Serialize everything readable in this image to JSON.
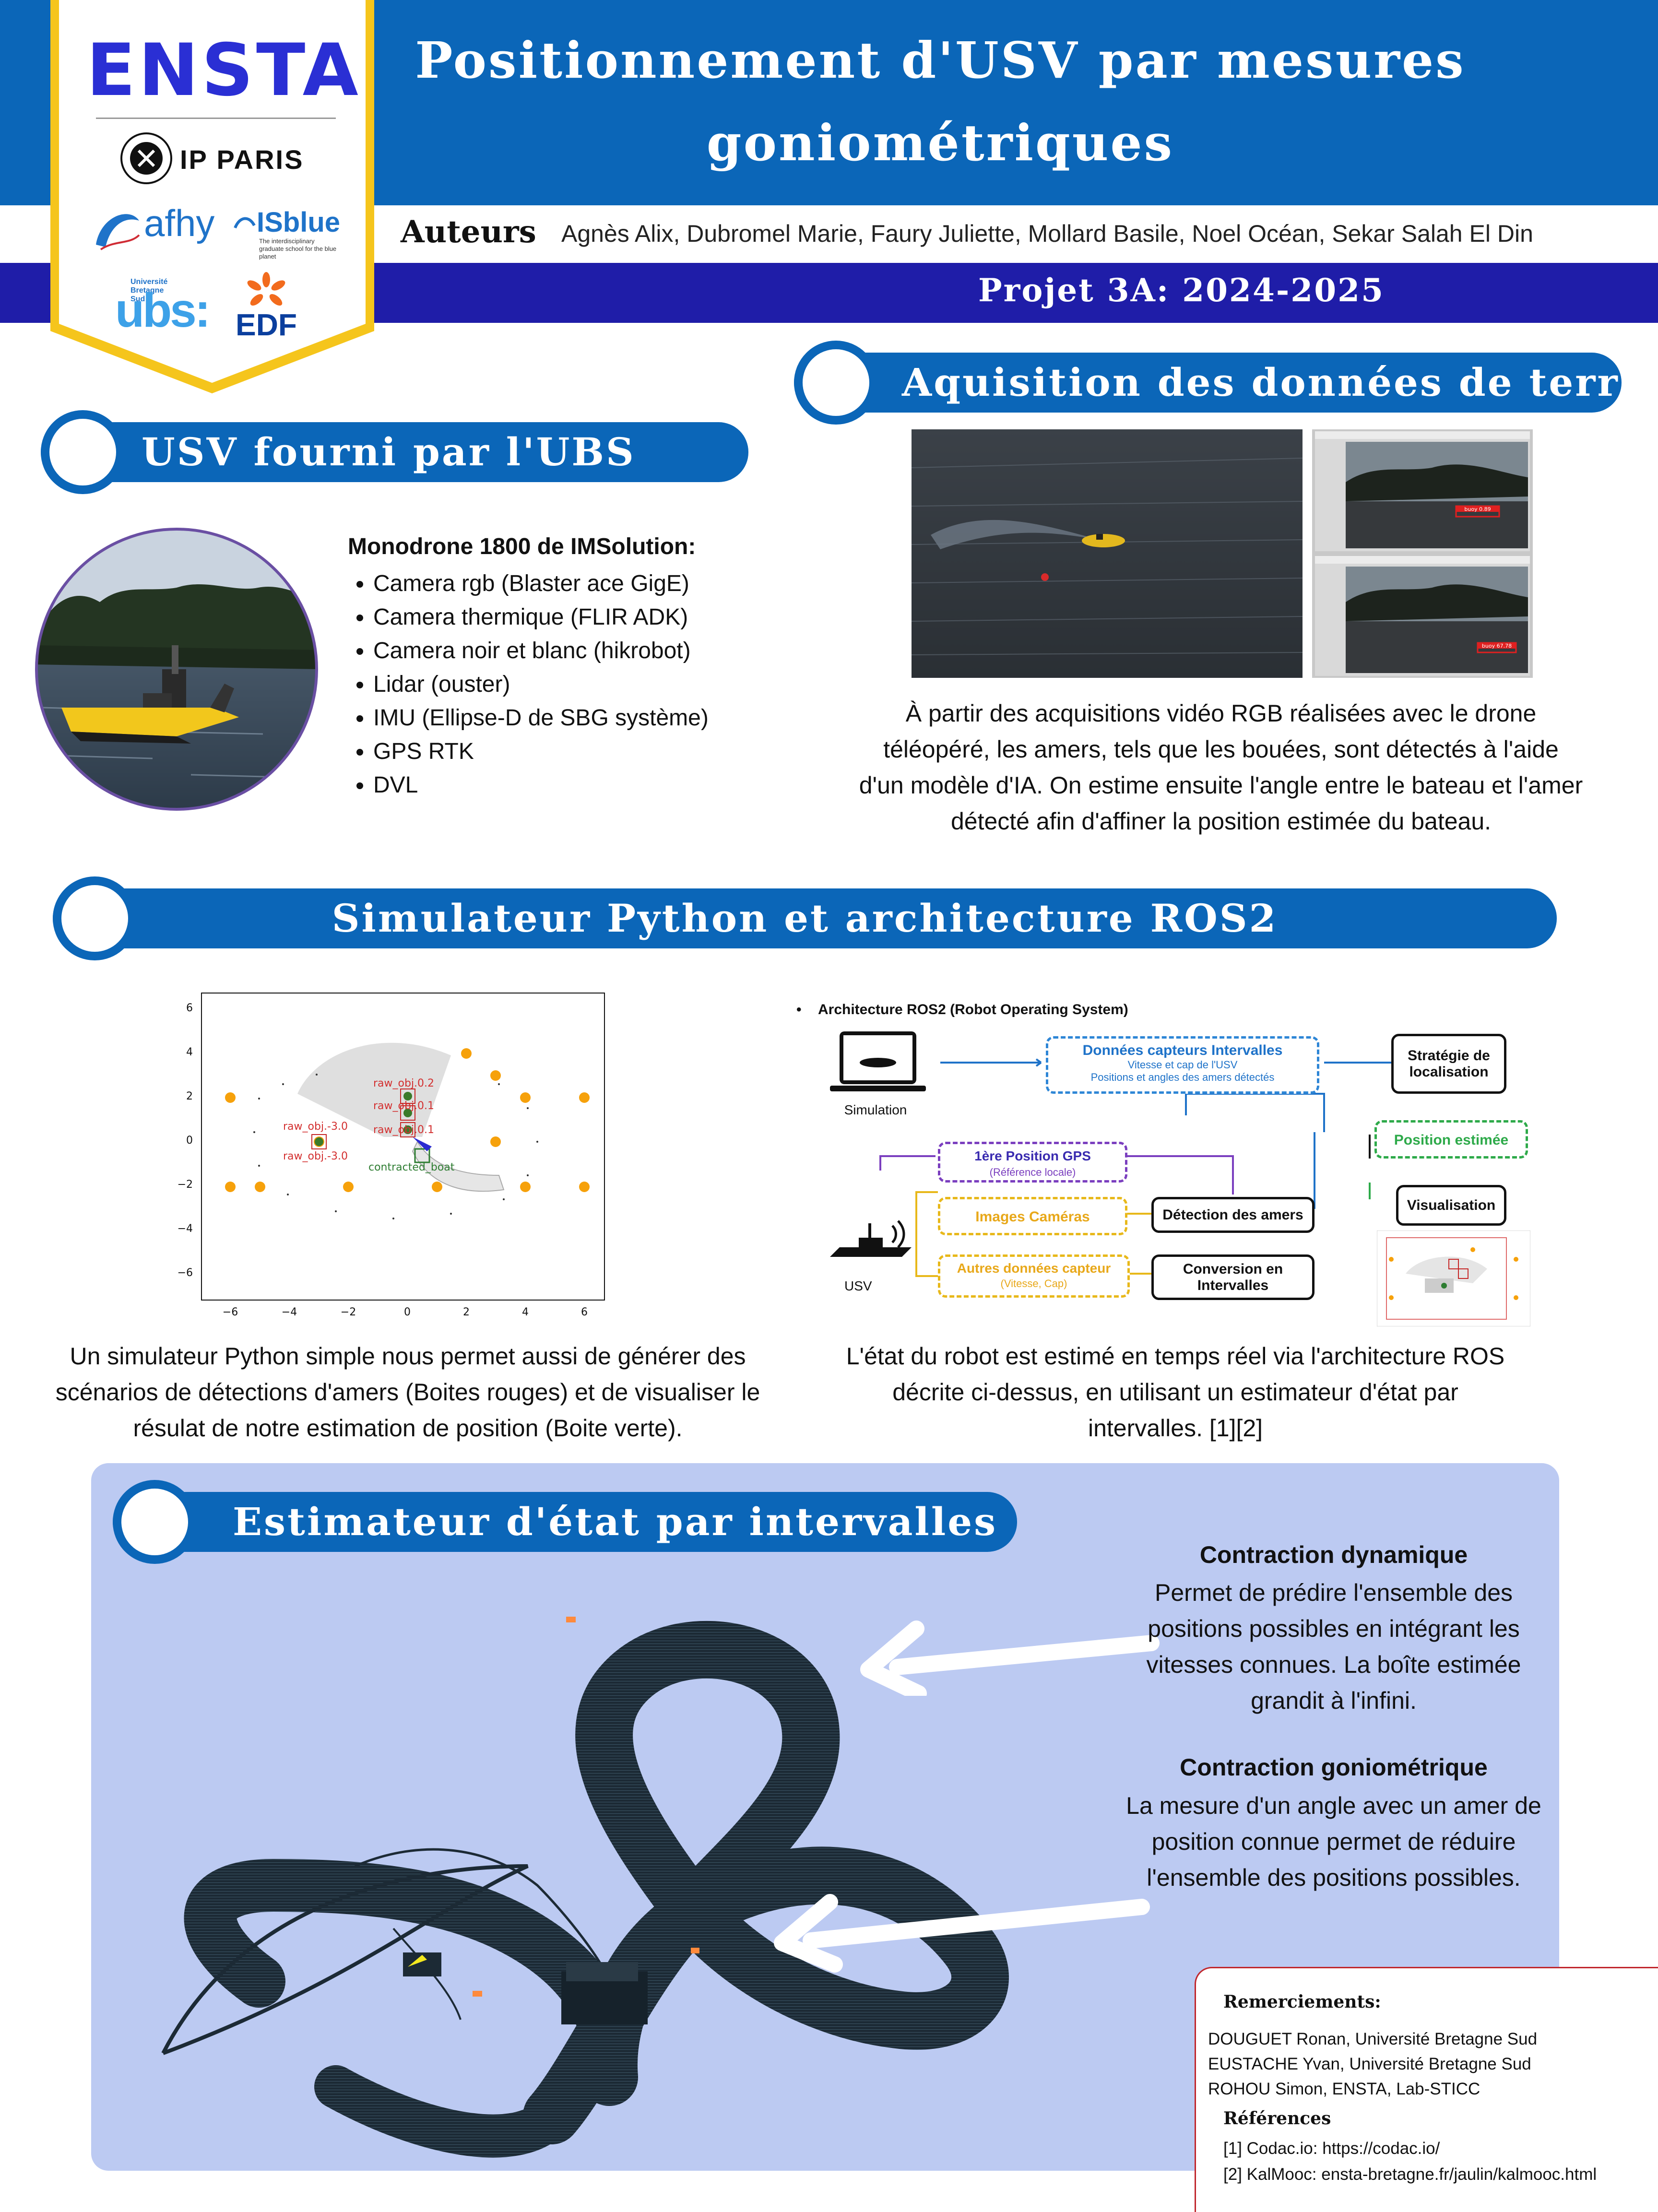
{
  "header": {
    "title": "Positionnement d'USV par mesures goniométriques",
    "authors_label": "Auteurs",
    "authors": "Agnès Alix, Dubromel Marie, Faury Juliette, Mollard Basile, Noel Océan, Sekar Salah El Din",
    "project": "Projet 3A: 2024-2025"
  },
  "logos": {
    "ensta": "ENSTA",
    "ip_paris": "IP PARIS",
    "afhy": "afhy",
    "isblue": "ISblue",
    "isblue_sub": "The interdisciplinary graduate school for the blue planet",
    "ubs": "ubs:",
    "ubs_sub": "Université Bretagne Sud",
    "edf": "EDF"
  },
  "sections": {
    "usv": {
      "title": "USV fourni par l'UBS",
      "model": "Monodrone 1800 de IMSolution:",
      "specs": [
        "Camera rgb (Blaster ace GigE)",
        "Camera thermique (FLIR ADK)",
        "Camera noir et blanc (hikrobot)",
        "Lidar (ouster)",
        "IMU (Ellipse-D de SBG système)",
        "GPS RTK",
        "DVL"
      ]
    },
    "acquisition": {
      "title": "Aquisition des données de terrain",
      "text": "À partir des acquisitions vidéo RGB réalisées avec le drone téléopéré, les amers, tels que les bouées, sont détectés à l'aide d'un modèle d'IA. On estime ensuite l'angle entre le bateau et l'amer détecté afin d'affiner la position estimée du bateau.",
      "detection_label_1": "buoy 0.89",
      "detection_label_2": "buoy 67.78"
    },
    "simulator": {
      "title": "Simulateur Python et architecture ROS2",
      "text_left": "Un simulateur Python simple nous permet aussi de générer des scénarios de détections d'amers (Boites rouges) et de visualiser le résulat de notre estimation de position (Boite verte).",
      "text_right": "L'état du robot est estimé en temps réel via l'architecture ROS décrite ci-dessus, en utilisant un estimateur d'état par intervalles. [1][2]"
    },
    "estimator": {
      "title": "Estimateur d'état par intervalles",
      "dyn_title": "Contraction dynamique",
      "dyn_text": "Permet de prédire l'ensemble des positions possibles en intégrant les vitesses connues. La boîte estimée grandit à l'infini.",
      "gon_title": "Contraction goniométrique",
      "gon_text": "La mesure d'un angle avec un amer de position connue permet de réduire l'ensemble des positions possibles."
    },
    "thanks": {
      "title": "Remerciements:",
      "people": [
        "DOUGUET Ronan, Université Bretagne Sud",
        "EUSTACHE Yvan, Université Bretagne Sud",
        "ROHOU Simon, ENSTA,  Lab-STICC"
      ],
      "refs_title": "Références",
      "refs": [
        "[1] Codac.io: https://codac.io/",
        "[2] KalMooc: ensta-bretagne.fr/jaulin/kalmooc.html"
      ]
    }
  },
  "ros": {
    "heading": "Architecture ROS2 (Robot Operating System)",
    "simulation": "Simulation",
    "usv": "USV",
    "sensors_title": "Données capteurs Intervalles",
    "sensors_l1": "Vitesse et cap de l'USV",
    "sensors_l2": "Positions et angles des amers détectés",
    "strategy": "Stratégie de localisation",
    "position": "Position estimée",
    "visualisation": "Visualisation",
    "gps_title": "1ère Position GPS",
    "gps_sub": "(Référence locale)",
    "cameras": "Images Caméras",
    "other_title": "Autres données capteur",
    "other_sub": "(Vitesse, Cap)",
    "detection": "Détection des amers",
    "conversion": "Conversion en Intervalles"
  },
  "sim_plot": {
    "x_ticks": [
      "−6",
      "−4",
      "−2",
      "0",
      "2",
      "4",
      "6"
    ],
    "y_ticks": [
      "6",
      "4",
      "2",
      "0",
      "−2",
      "−4",
      "−6"
    ],
    "label_obj_a": "raw_obj.0.2",
    "label_obj_b": "raw_obj.0.1",
    "label_obj_c": "raw_obj.-3.0",
    "label_obj_d": "raw_obj.-3.0",
    "label_obj_e": "raw_obj.0.1",
    "label_boat": "contracted_boat"
  },
  "colors": {
    "primary_blue": "#0b66b8",
    "project_band": "#1f1da8",
    "estimator_panel": "#bccaf2",
    "landmark_orange": "#f6a10b"
  }
}
